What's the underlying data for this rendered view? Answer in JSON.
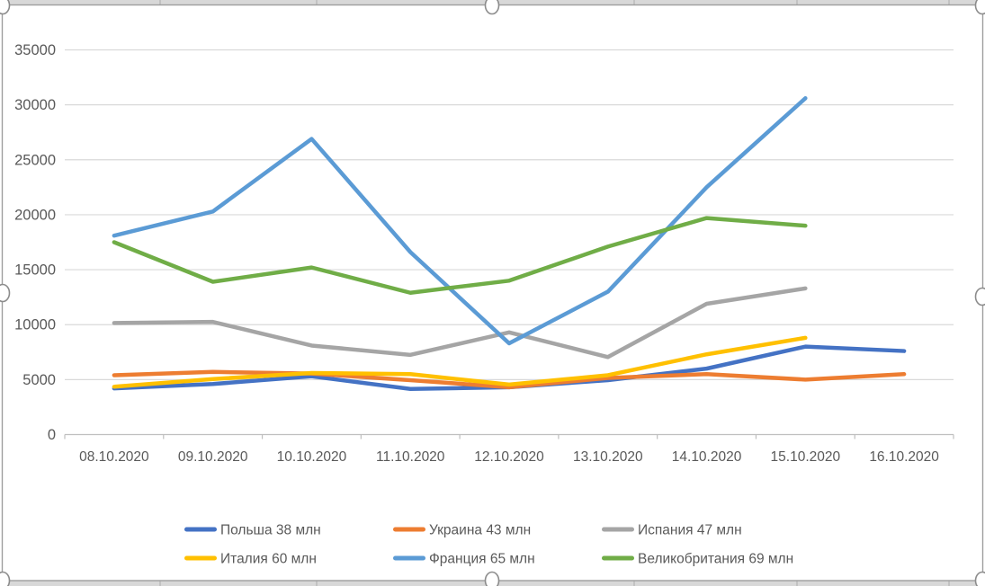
{
  "chart_frame": {
    "selected": true,
    "background": "#FFFFFF",
    "border_color": "#9E9E9E",
    "handle_fill": "#FFFFFF",
    "handle_stroke": "#8C8C8C",
    "strip_fill": "#D8D8D8",
    "strip_line": "#ABABAB"
  },
  "chart_data": {
    "type": "line",
    "title": "",
    "categories": [
      "08.10.2020",
      "09.10.2020",
      "10.10.2020",
      "11.10.2020",
      "12.10.2020",
      "13.10.2020",
      "14.10.2020",
      "15.10.2020",
      "16.10.2020"
    ],
    "series": [
      {
        "name": "Польша 38 млн",
        "color": "#4472C4",
        "values": [
          4200,
          4600,
          5300,
          4150,
          4300,
          4950,
          6000,
          8000,
          7600
        ]
      },
      {
        "name": "Украина 43 млн",
        "color": "#ED7D31",
        "values": [
          5400,
          5700,
          5550,
          4950,
          4300,
          5150,
          5500,
          5000,
          5500
        ]
      },
      {
        "name": "Испания 47 млн",
        "color": "#A5A5A5",
        "values": [
          10150,
          10250,
          8100,
          7250,
          9300,
          7050,
          11900,
          13300,
          null
        ]
      },
      {
        "name": "Италия 60 млн",
        "color": "#FFC000",
        "values": [
          4350,
          5050,
          5600,
          5500,
          4550,
          5400,
          7300,
          8800,
          null
        ]
      },
      {
        "name": "Франция 65 млн",
        "color": "#5B9BD5",
        "values": [
          18100,
          20300,
          26900,
          16600,
          8300,
          13000,
          22500,
          30600,
          null
        ]
      },
      {
        "name": "Великобритания 69 млн",
        "color": "#70AD47",
        "values": [
          17500,
          13900,
          15200,
          12900,
          14000,
          17100,
          19700,
          19000,
          null
        ]
      }
    ],
    "y_axis": {
      "min": 0,
      "max": 35000,
      "step": 5000,
      "tick_labels": [
        "0",
        "5000",
        "10000",
        "15000",
        "20000",
        "25000",
        "30000",
        "35000"
      ]
    },
    "grid": true,
    "legend_position": "bottom",
    "colors": {
      "axis_text": "#595959",
      "gridline": "#D9D9D9",
      "axis_line": "#BFBFBF"
    }
  }
}
